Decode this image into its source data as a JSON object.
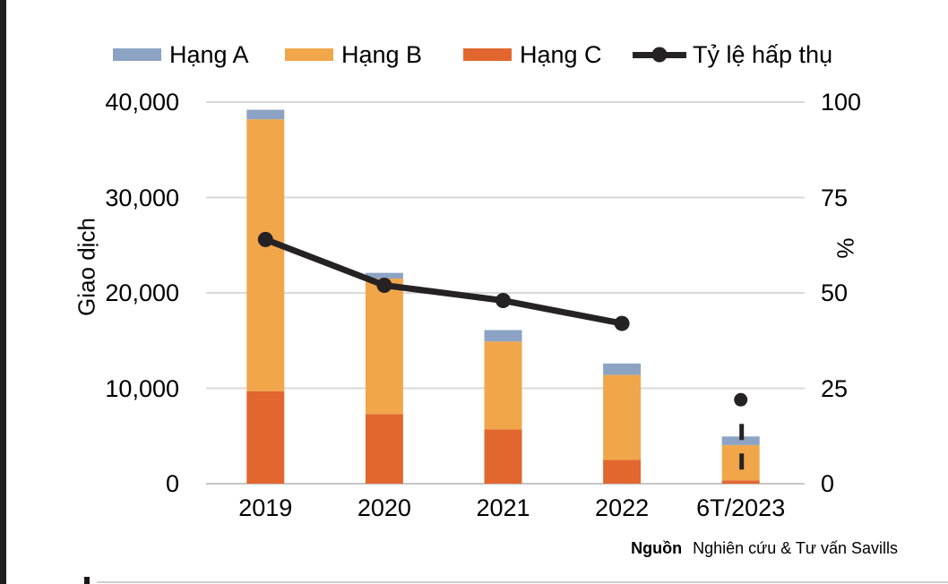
{
  "page": {
    "background": "#ffffff",
    "left_strip_color": "#211e20",
    "gridline_color": "#d9d9d9",
    "axisline_color": "#c6c6c6"
  },
  "chart_data": {
    "type": "bar",
    "subtype": "stacked-columns-with-line-overlay",
    "title": "",
    "categories": [
      "2019",
      "2020",
      "2021",
      "2022",
      "6T/2023"
    ],
    "series": [
      {
        "name": "Hạng A",
        "type": "bar",
        "color": "#8ca3c3",
        "values": [
          1000,
          600,
          1200,
          1200,
          900
        ]
      },
      {
        "name": "Hạng B",
        "type": "bar",
        "color": "#f2a64a",
        "values": [
          28500,
          14200,
          9200,
          8900,
          3700
        ]
      },
      {
        "name": "Hạng C",
        "type": "bar",
        "color": "#e2672f",
        "values": [
          9700,
          7300,
          5700,
          2500,
          350
        ]
      },
      {
        "name": "Tỷ lệ hấp thụ",
        "type": "line",
        "axis": "right",
        "color": "#262223",
        "values": [
          64,
          52,
          48,
          42,
          22
        ],
        "last_point_detached_with_dashed_drop": true
      }
    ],
    "stack_order_bottom_to_top": [
      "Hạng C",
      "Hạng B",
      "Hạng A"
    ],
    "ylabel_left": "Giao dịch",
    "ylabel_right": "%",
    "ylim_left": [
      0,
      40000
    ],
    "ylim_right": [
      0,
      100
    ],
    "yticks_left": [
      "40,000",
      "30,000",
      "20,000",
      "10,000",
      "0"
    ],
    "yticks_right": [
      "100",
      "75",
      "50",
      "25",
      "0"
    ],
    "grid": "horizontal",
    "legend_position": "top"
  },
  "source": {
    "label": "Nguồn",
    "text": "Nghiên cứu & Tư vấn Savills"
  }
}
